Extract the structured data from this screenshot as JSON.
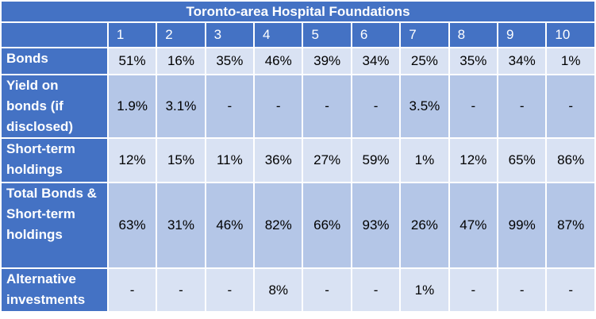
{
  "table": {
    "title": "Toronto-area Hospital Foundations",
    "columns": [
      "1",
      "2",
      "3",
      "4",
      "5",
      "6",
      "7",
      "8",
      "9",
      "10"
    ],
    "rows": [
      {
        "label": "Bonds",
        "values": [
          "51%",
          "16%",
          "35%",
          "46%",
          "39%",
          "34%",
          "25%",
          "35%",
          "34%",
          "1%"
        ]
      },
      {
        "label": "Yield on bonds (if disclosed)",
        "values": [
          "1.9%",
          "3.1%",
          "-",
          "-",
          "-",
          "-",
          "3.5%",
          "-",
          "-",
          "-"
        ]
      },
      {
        "label": "Short-term holdings",
        "values": [
          "12%",
          "15%",
          "11%",
          "36%",
          "27%",
          "59%",
          "1%",
          "12%",
          "65%",
          "86%"
        ]
      },
      {
        "label": "Total Bonds & Short-term holdings",
        "values": [
          "63%",
          "31%",
          "46%",
          "82%",
          "66%",
          "93%",
          "26%",
          "47%",
          "99%",
          "87%"
        ]
      },
      {
        "label": "Alternative investments",
        "values": [
          "-",
          "-",
          "-",
          "8%",
          "-",
          "-",
          "1%",
          "-",
          "-",
          "-"
        ]
      }
    ]
  },
  "colors": {
    "header_bg": "#4472c4",
    "row_light": "#d9e2f3",
    "row_dark": "#b4c6e7"
  }
}
